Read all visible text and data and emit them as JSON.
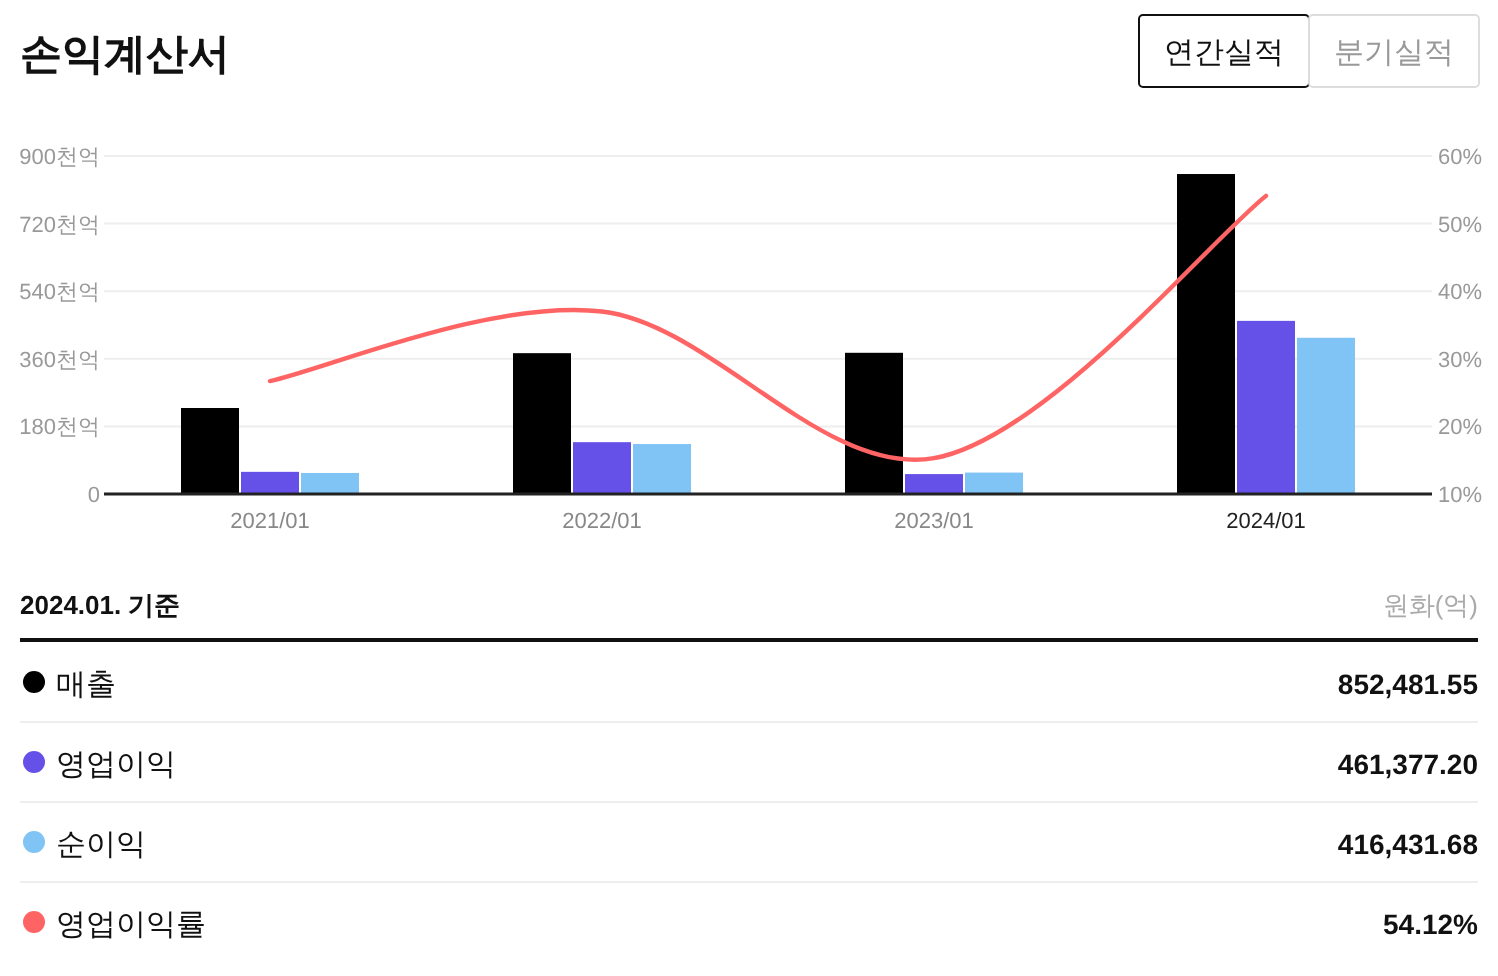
{
  "chart_data": {
    "type": "bar",
    "title": "손익계산서",
    "categories": [
      "2021/01",
      "2022/01",
      "2023/01",
      "2024/01"
    ],
    "series": [
      {
        "name": "매출",
        "color": "#000000",
        "values": [
          229,
          375,
          376,
          852
        ]
      },
      {
        "name": "영업이익",
        "color": "#6651e8",
        "values": [
          59,
          138,
          53,
          461
        ]
      },
      {
        "name": "순이익",
        "color": "#80c3f5",
        "values": [
          56,
          133,
          57,
          416
        ]
      },
      {
        "name": "영업이익률",
        "color": "#ff6464",
        "type": "line",
        "axis": "y2",
        "values": [
          26.7,
          37.0,
          15.3,
          54.1
        ]
      }
    ],
    "ylim": [
      0,
      900
    ],
    "yticks": [
      0,
      {
        "value": 180,
        "label": "180천억"
      },
      {
        "value": 360,
        "label": "360천억"
      },
      {
        "value": 540,
        "label": "540천억"
      },
      {
        "value": 720,
        "label": "720천억"
      },
      {
        "value": 900,
        "label": "900천억"
      }
    ],
    "y2lim": [
      10,
      60
    ],
    "y2ticks": [
      {
        "value": 10,
        "label": "10%"
      },
      {
        "value": 20,
        "label": "20%"
      },
      {
        "value": 30,
        "label": "30%"
      },
      {
        "value": 40,
        "label": "40%"
      },
      {
        "value": 50,
        "label": "50%"
      },
      {
        "value": 60,
        "label": "60%"
      }
    ],
    "grid": "y",
    "legend": "bottom",
    "annotations": [
      "연간실적",
      "분기실적",
      "2024.01. 기준",
      "원화(억)",
      "852,481.55",
      "461,377.20",
      "416,431.68",
      "54.12%"
    ]
  }
}
